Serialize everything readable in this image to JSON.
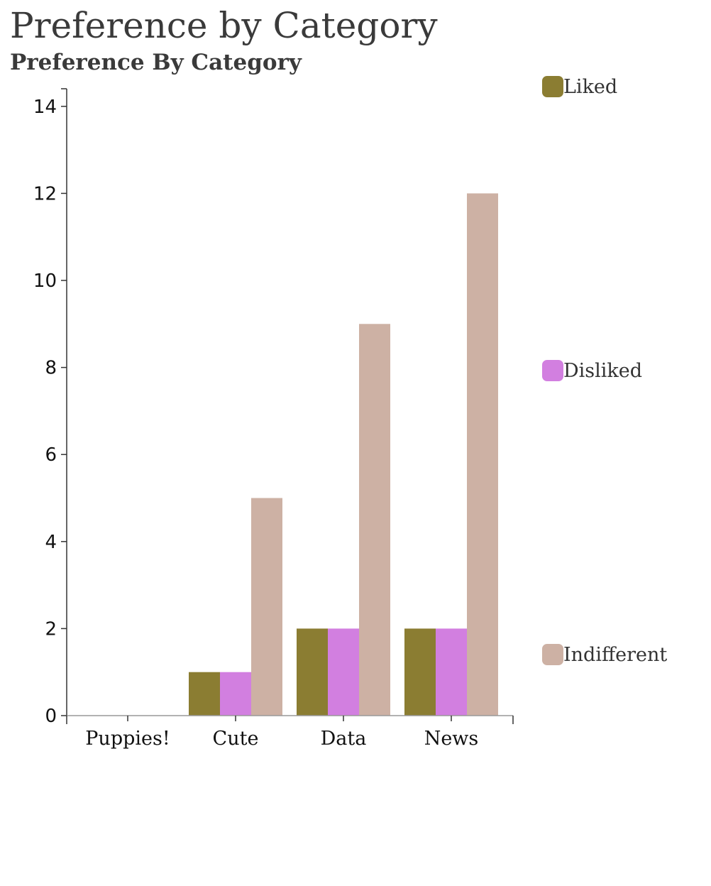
{
  "title": "Preference by Category",
  "subtitle": "Preference By Category",
  "chart_data": {
    "type": "bar",
    "categories": [
      "Puppies!",
      "Cute",
      "Data",
      "News"
    ],
    "series": [
      {
        "name": "Liked",
        "color": "#8b7d32",
        "values": [
          0,
          1,
          2,
          2
        ]
      },
      {
        "name": "Disliked",
        "color": "#d27fe0",
        "values": [
          0,
          1,
          2,
          2
        ]
      },
      {
        "name": "Indifferent",
        "color": "#cdb1a4",
        "values": [
          0,
          5,
          9,
          12
        ]
      }
    ],
    "ylim": [
      0,
      14
    ],
    "yticks": [
      "0",
      "2",
      "4",
      "6",
      "8",
      "10",
      "12",
      "14"
    ],
    "grid": false,
    "legend_position": "right"
  }
}
